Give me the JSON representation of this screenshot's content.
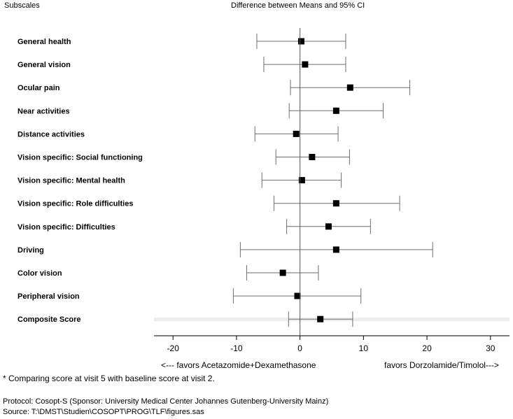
{
  "header": {
    "left": "Subscales",
    "center": "Difference between Means and 95% CI"
  },
  "axis_notes": {
    "left": "<--- favors Acetazomide+Dexamethasone",
    "right": "favors Dorzolamide/Timolol--->"
  },
  "footer": {
    "footnote": "* Comparing score at visit 5 with baseline score at visit 2.",
    "protocol": "Protocol: Cosopt-S (Sponsor: University Medical Center Johannes Gutenberg-University Mainz)",
    "source": "Source: T:\\DMST\\Studien\\COSOPT\\PROG\\TLF\\figures.sas"
  },
  "chart_data": {
    "type": "forest",
    "title": "Difference between Means and 95% CI",
    "xlabel": "",
    "ylabel": "Subscales",
    "xlim": [
      -23,
      33
    ],
    "xticks": [
      -20,
      -10,
      0,
      10,
      20,
      30
    ],
    "reference_line": 0,
    "highlighted_row": "Composite Score",
    "rows": [
      {
        "label": "General health",
        "mean": 0.2,
        "lower": -6.8,
        "upper": 7.2
      },
      {
        "label": "General vision",
        "mean": 0.8,
        "lower": -5.7,
        "upper": 7.2
      },
      {
        "label": "Ocular pain",
        "mean": 7.9,
        "lower": -1.5,
        "upper": 17.3
      },
      {
        "label": "Near activities",
        "mean": 5.7,
        "lower": -1.7,
        "upper": 13.1
      },
      {
        "label": "Distance activities",
        "mean": -0.6,
        "lower": -7.1,
        "upper": 6.0
      },
      {
        "label": "Vision specific: Social functioning",
        "mean": 1.9,
        "lower": -3.8,
        "upper": 7.8
      },
      {
        "label": "Vision specific: Mental health",
        "mean": 0.3,
        "lower": -6.0,
        "upper": 6.5
      },
      {
        "label": "Vision specific: Role difficulties",
        "mean": 5.7,
        "lower": -4.1,
        "upper": 15.7
      },
      {
        "label": "Vision specific: Difficulties",
        "mean": 4.5,
        "lower": -2.1,
        "upper": 11.1
      },
      {
        "label": "Driving",
        "mean": 5.7,
        "lower": -9.4,
        "upper": 20.9
      },
      {
        "label": "Color vision",
        "mean": -2.7,
        "lower": -8.4,
        "upper": 2.9
      },
      {
        "label": "Peripheral vision",
        "mean": -0.4,
        "lower": -10.5,
        "upper": 9.6
      },
      {
        "label": "Composite Score",
        "mean": 3.2,
        "lower": -1.8,
        "upper": 8.3
      }
    ]
  }
}
